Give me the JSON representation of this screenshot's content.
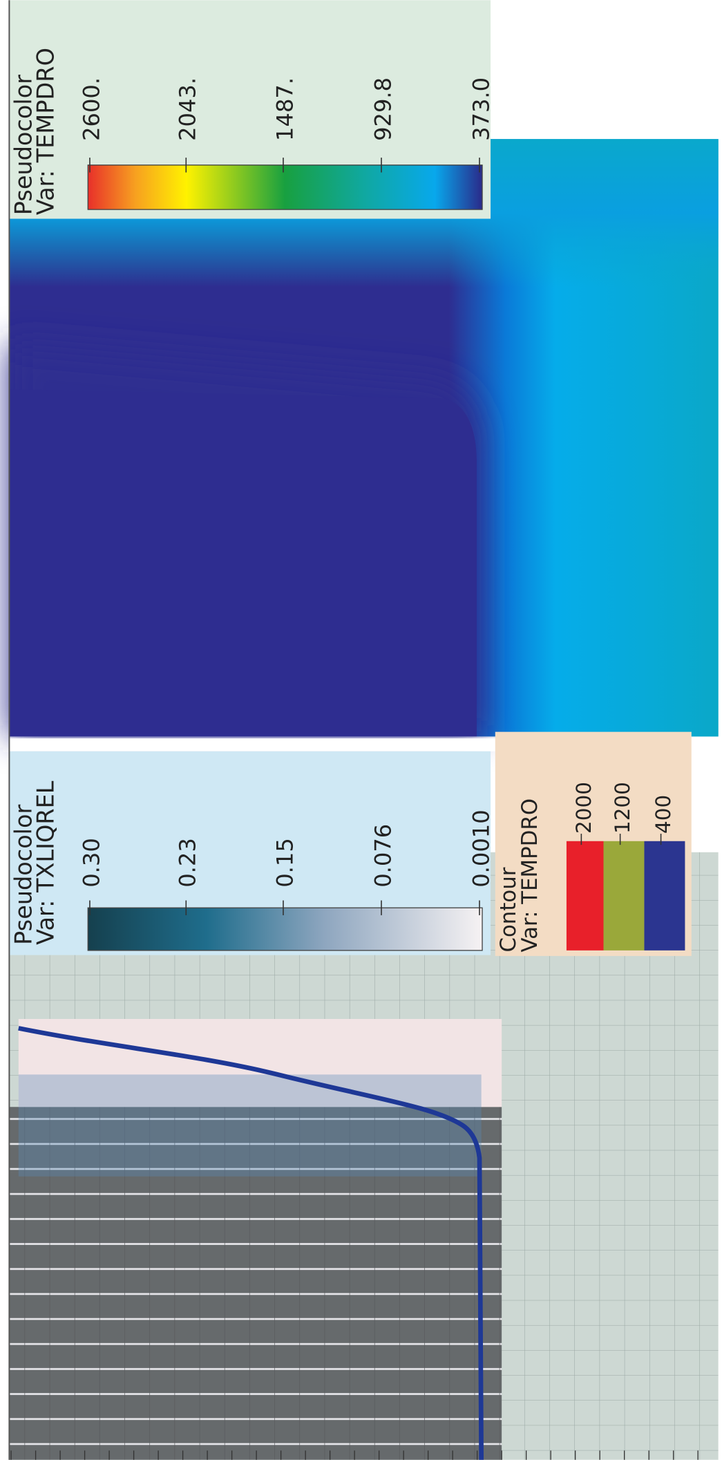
{
  "top_panel": {
    "legend": {
      "title": "Pseudocolor",
      "variable": "Var: TEMPDRO",
      "ticks": [
        "2600.",
        "2043.",
        "1487.",
        "929.8",
        "373.0"
      ]
    }
  },
  "bottom_panel": {
    "legend": {
      "title": "Pseudocolor",
      "variable": "Var: TXLIQREL",
      "ticks": [
        "0.30",
        "0.23",
        "0.15",
        "0.076",
        "0.0010"
      ]
    },
    "contour_legend": {
      "title": "Contour",
      "variable": "Var: TEMPDRO",
      "levels": [
        "2000",
        "1200",
        "400"
      ]
    }
  }
}
